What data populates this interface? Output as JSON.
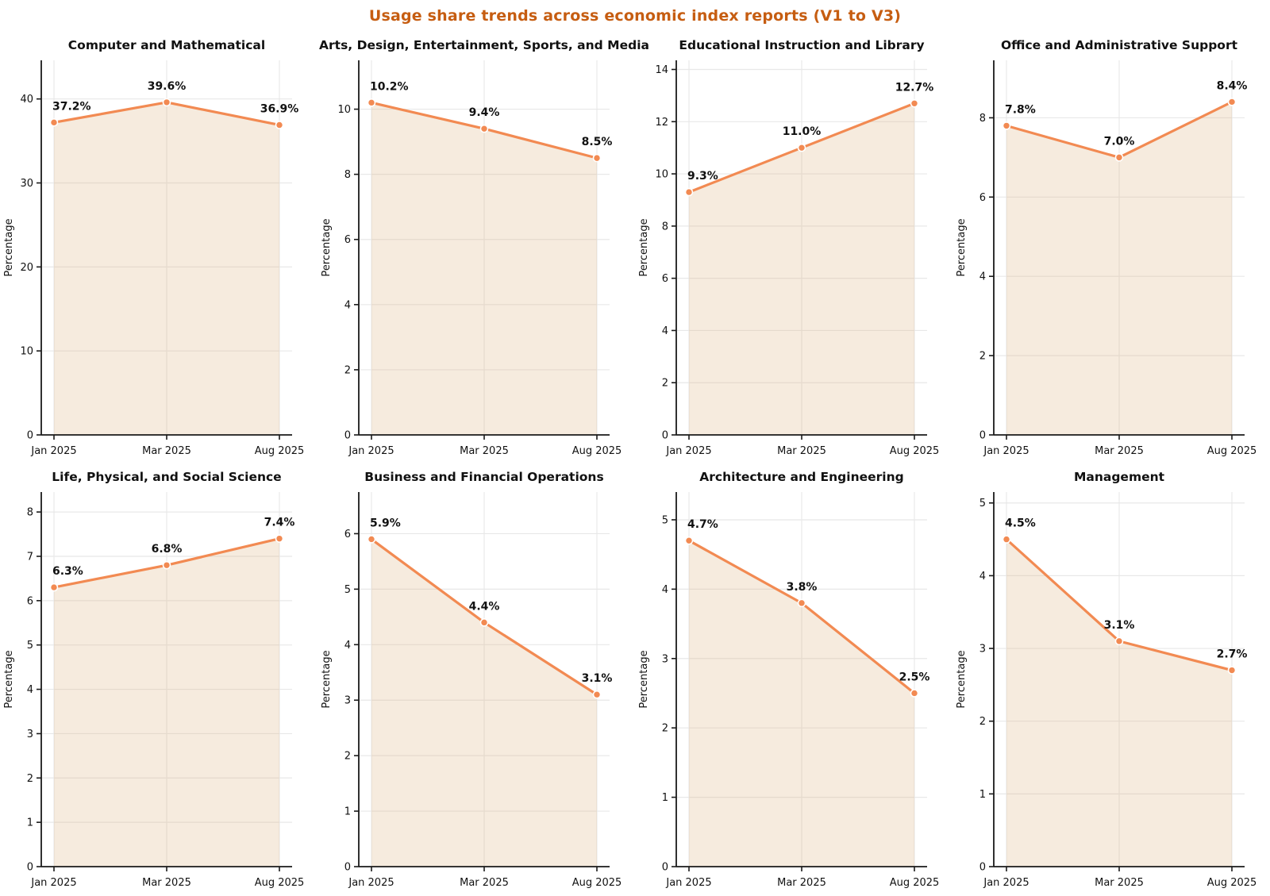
{
  "header": {
    "title": "Usage share trends across economic index reports (V1 to V3)"
  },
  "style": {
    "title_color": "#C65D11",
    "line_color": "#F28A52",
    "marker_edge_color": "#FFFFFF",
    "fill_color": "rgba(222,184,135,0.28)",
    "grid_color": "#E8E8E8",
    "axis_color": "#1A1A1A",
    "text_color": "#111111"
  },
  "axes_common": {
    "ylabel": "Percentage",
    "categories": [
      "Jan 2025",
      "Mar 2025",
      "Aug 2025"
    ]
  },
  "chart_data": [
    {
      "type": "area",
      "title": "Computer and Mathematical",
      "x": [
        "Jan 2025",
        "Mar 2025",
        "Aug 2025"
      ],
      "values": [
        37.2,
        39.6,
        36.9
      ],
      "point_labels": [
        "37.2%",
        "39.6%",
        "36.9%"
      ],
      "ylabel": "Percentage",
      "ylim": [
        0,
        44.6
      ],
      "yticks": [
        0,
        10,
        20,
        30,
        40
      ],
      "grid": true,
      "legend": false
    },
    {
      "type": "area",
      "title": "Arts, Design, Entertainment, Sports, and Media",
      "x": [
        "Jan 2025",
        "Mar 2025",
        "Aug 2025"
      ],
      "values": [
        10.2,
        9.4,
        8.5
      ],
      "point_labels": [
        "10.2%",
        "9.4%",
        "8.5%"
      ],
      "ylabel": "Percentage",
      "ylim": [
        0,
        11.5
      ],
      "yticks": [
        0,
        2,
        4,
        6,
        8,
        10
      ],
      "grid": true,
      "legend": false
    },
    {
      "type": "area",
      "title": "Educational Instruction and Library",
      "x": [
        "Jan 2025",
        "Mar 2025",
        "Aug 2025"
      ],
      "values": [
        9.3,
        11.0,
        12.7
      ],
      "point_labels": [
        "9.3%",
        "11.0%",
        "12.7%"
      ],
      "ylabel": "Percentage",
      "ylim": [
        0,
        14.35
      ],
      "yticks": [
        0,
        2,
        4,
        6,
        8,
        10,
        12,
        14
      ],
      "grid": true,
      "legend": false
    },
    {
      "type": "area",
      "title": "Office and Administrative Support",
      "x": [
        "Jan 2025",
        "Mar 2025",
        "Aug 2025"
      ],
      "values": [
        7.8,
        7.0,
        8.4
      ],
      "point_labels": [
        "7.8%",
        "7.0%",
        "8.4%"
      ],
      "ylabel": "Percentage",
      "ylim": [
        0,
        9.45
      ],
      "yticks": [
        0,
        2,
        4,
        6,
        8
      ],
      "grid": true,
      "legend": false
    },
    {
      "type": "area",
      "title": "Life, Physical, and Social Science",
      "x": [
        "Jan 2025",
        "Mar 2025",
        "Aug 2025"
      ],
      "values": [
        6.3,
        6.8,
        7.4
      ],
      "point_labels": [
        "6.3%",
        "6.8%",
        "7.4%"
      ],
      "ylabel": "Percentage",
      "ylim": [
        0,
        8.45
      ],
      "yticks": [
        0,
        1,
        2,
        3,
        4,
        5,
        6,
        7,
        8
      ],
      "grid": true,
      "legend": false
    },
    {
      "type": "area",
      "title": "Business and Financial Operations",
      "x": [
        "Jan 2025",
        "Mar 2025",
        "Aug 2025"
      ],
      "values": [
        5.9,
        4.4,
        3.1
      ],
      "point_labels": [
        "5.9%",
        "4.4%",
        "3.1%"
      ],
      "ylabel": "Percentage",
      "ylim": [
        0,
        6.75
      ],
      "yticks": [
        0,
        1,
        2,
        3,
        4,
        5,
        6
      ],
      "grid": true,
      "legend": false
    },
    {
      "type": "area",
      "title": "Architecture and Engineering",
      "x": [
        "Jan 2025",
        "Mar 2025",
        "Aug 2025"
      ],
      "values": [
        4.7,
        3.8,
        2.5
      ],
      "point_labels": [
        "4.7%",
        "3.8%",
        "2.5%"
      ],
      "ylabel": "Percentage",
      "ylim": [
        0,
        5.4
      ],
      "yticks": [
        0,
        1,
        2,
        3,
        4,
        5
      ],
      "grid": true,
      "legend": false
    },
    {
      "type": "area",
      "title": "Management",
      "x": [
        "Jan 2025",
        "Mar 2025",
        "Aug 2025"
      ],
      "values": [
        4.5,
        3.1,
        2.7
      ],
      "point_labels": [
        "4.5%",
        "3.1%",
        "2.7%"
      ],
      "ylabel": "Percentage",
      "ylim": [
        0,
        5.15
      ],
      "yticks": [
        0,
        1,
        2,
        3,
        4,
        5
      ],
      "grid": true,
      "legend": false
    }
  ]
}
